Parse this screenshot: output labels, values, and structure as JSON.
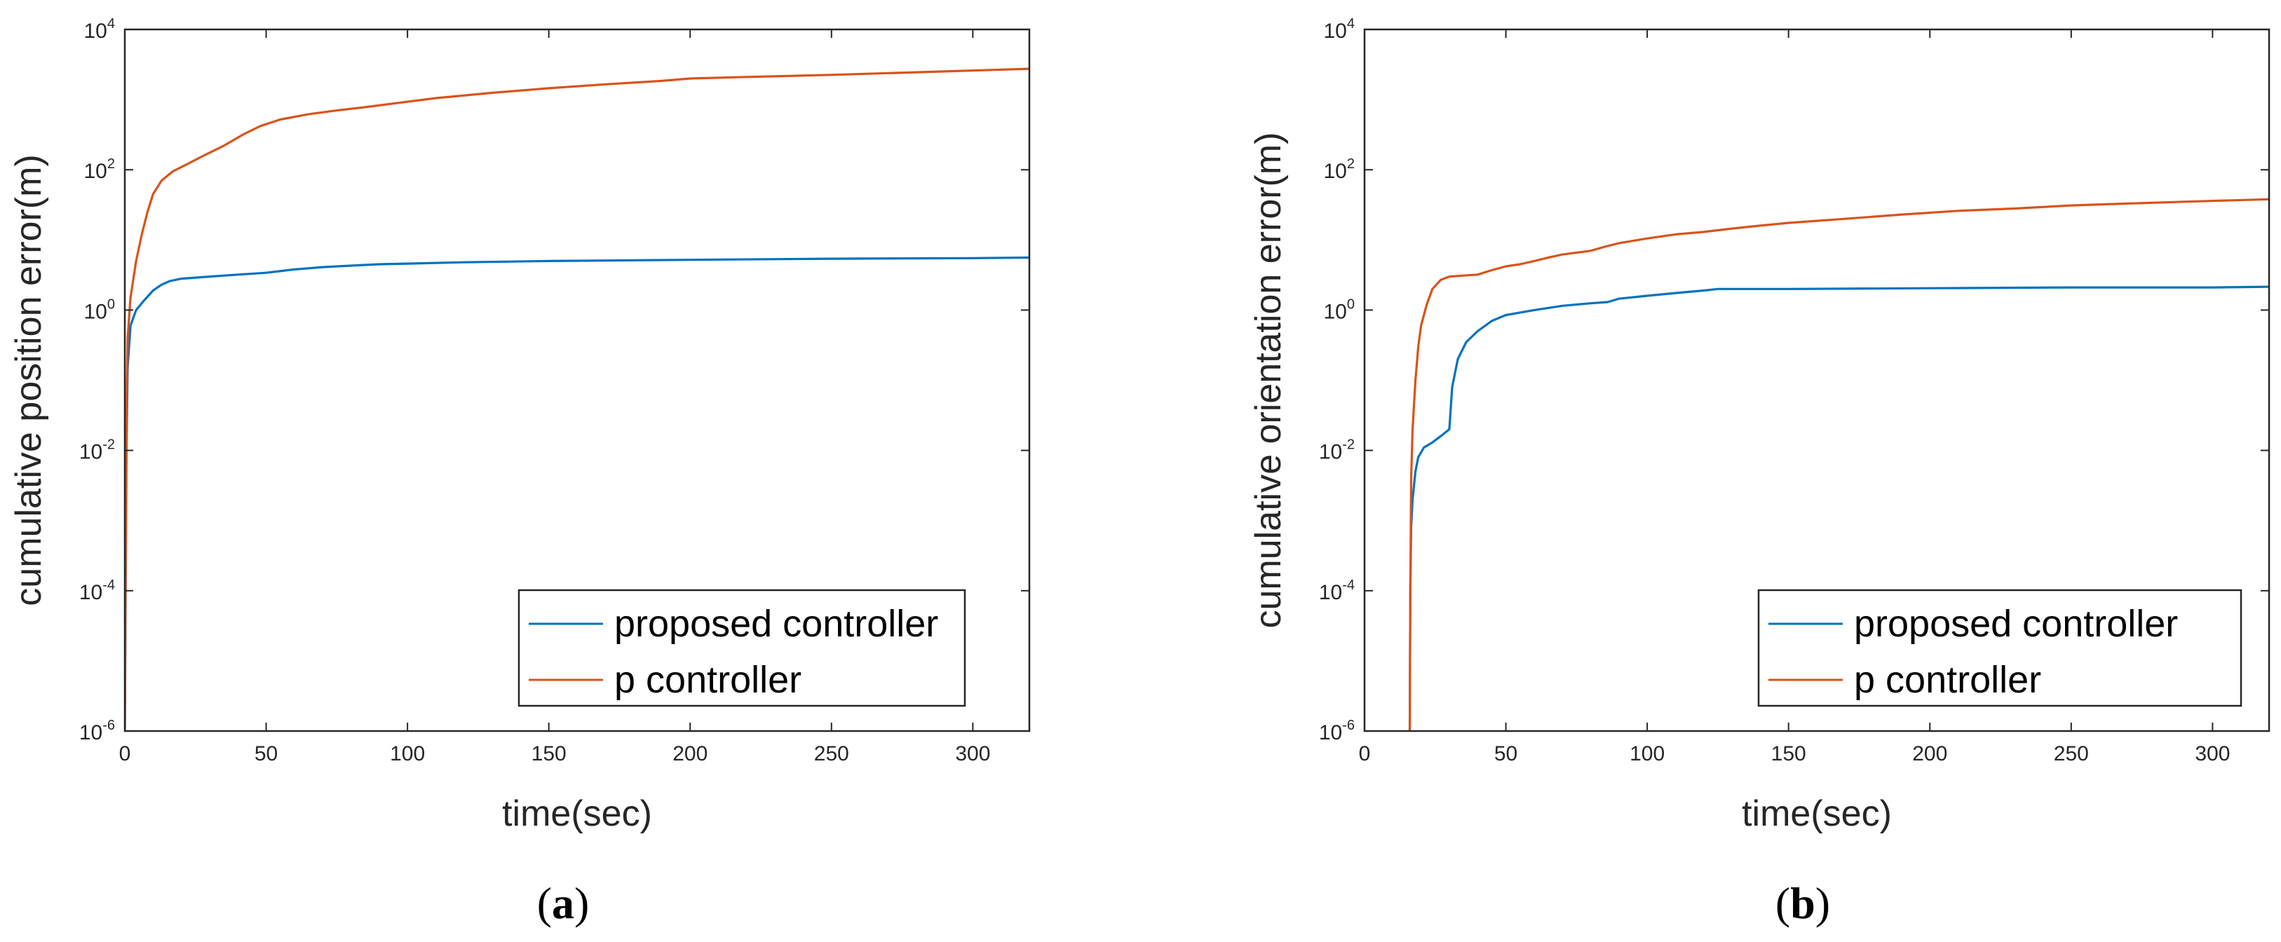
{
  "chart_data": [
    {
      "type": "line",
      "panel_label": "(a)",
      "panel_paren_open": "(",
      "panel_letter": "a",
      "panel_paren_close": ")",
      "xlabel": "time(sec)",
      "ylabel": "cumulative position error(m)",
      "xlim": [
        0,
        320
      ],
      "ylim": [
        1e-06,
        10000.0
      ],
      "yscale": "log",
      "grid": false,
      "legend_position": "bottom-right",
      "xticks": [
        "0",
        "50",
        "100",
        "150",
        "200",
        "250",
        "300"
      ],
      "yticks": [
        {
          "base": "10",
          "exp": "-6"
        },
        {
          "base": "10",
          "exp": "-4"
        },
        {
          "base": "10",
          "exp": "-2"
        },
        {
          "base": "10",
          "exp": "0"
        },
        {
          "base": "10",
          "exp": "2"
        },
        {
          "base": "10",
          "exp": "4"
        }
      ],
      "series": [
        {
          "name": "proposed controller",
          "color": "#0072BD",
          "points": [
            [
              0,
              1e-06
            ],
            [
              0.3,
              0.0001
            ],
            [
              0.6,
              0.01
            ],
            [
              1,
              0.15
            ],
            [
              2,
              0.6
            ],
            [
              4,
              1.0
            ],
            [
              7,
              1.4
            ],
            [
              10,
              1.9
            ],
            [
              13,
              2.3
            ],
            [
              16,
              2.6
            ],
            [
              20,
              2.8
            ],
            [
              25,
              2.9
            ],
            [
              30,
              3.0
            ],
            [
              40,
              3.2
            ],
            [
              50,
              3.4
            ],
            [
              60,
              3.8
            ],
            [
              70,
              4.1
            ],
            [
              80,
              4.3
            ],
            [
              90,
              4.5
            ],
            [
              100,
              4.6
            ],
            [
              120,
              4.8
            ],
            [
              150,
              5.0
            ],
            [
              200,
              5.2
            ],
            [
              250,
              5.4
            ],
            [
              300,
              5.5
            ],
            [
              320,
              5.6
            ]
          ]
        },
        {
          "name": "p controller",
          "color": "#D95319",
          "points": [
            [
              0,
              1e-06
            ],
            [
              0.3,
              0.0003
            ],
            [
              0.6,
              0.03
            ],
            [
              1,
              0.4
            ],
            [
              2,
              1.5
            ],
            [
              4,
              5
            ],
            [
              6,
              12
            ],
            [
              8,
              25
            ],
            [
              10,
              45
            ],
            [
              13,
              70
            ],
            [
              17,
              95
            ],
            [
              22,
              120
            ],
            [
              28,
              160
            ],
            [
              35,
              220
            ],
            [
              42,
              320
            ],
            [
              48,
              420
            ],
            [
              55,
              520
            ],
            [
              65,
              620
            ],
            [
              75,
              700
            ],
            [
              85,
              780
            ],
            [
              95,
              880
            ],
            [
              110,
              1050
            ],
            [
              130,
              1250
            ],
            [
              150,
              1450
            ],
            [
              170,
              1650
            ],
            [
              190,
              1850
            ],
            [
              200,
              2000
            ],
            [
              220,
              2100
            ],
            [
              250,
              2250
            ],
            [
              280,
              2450
            ],
            [
              300,
              2600
            ],
            [
              320,
              2750
            ]
          ]
        }
      ]
    },
    {
      "type": "line",
      "panel_label": "(b)",
      "panel_paren_open": "(",
      "panel_letter": "b",
      "panel_paren_close": ")",
      "xlabel": "time(sec)",
      "ylabel": "cumulative orientation error(m)",
      "xlim": [
        0,
        320
      ],
      "ylim": [
        1e-06,
        10000.0
      ],
      "yscale": "log",
      "grid": false,
      "legend_position": "bottom-right",
      "xticks": [
        "0",
        "50",
        "100",
        "150",
        "200",
        "250",
        "300"
      ],
      "yticks": [
        {
          "base": "10",
          "exp": "-6"
        },
        {
          "base": "10",
          "exp": "-4"
        },
        {
          "base": "10",
          "exp": "-2"
        },
        {
          "base": "10",
          "exp": "0"
        },
        {
          "base": "10",
          "exp": "2"
        },
        {
          "base": "10",
          "exp": "4"
        }
      ],
      "series": [
        {
          "name": "proposed controller",
          "color": "#0072BD",
          "points": [
            [
              16,
              1e-06
            ],
            [
              16.2,
              0.0001
            ],
            [
              16.5,
              0.0008
            ],
            [
              17,
              0.002
            ],
            [
              18,
              0.005
            ],
            [
              19,
              0.008
            ],
            [
              21,
              0.011
            ],
            [
              24,
              0.013
            ],
            [
              27,
              0.016
            ],
            [
              30,
              0.02
            ],
            [
              31,
              0.08
            ],
            [
              33,
              0.2
            ],
            [
              36,
              0.35
            ],
            [
              40,
              0.5
            ],
            [
              45,
              0.7
            ],
            [
              50,
              0.85
            ],
            [
              60,
              1.0
            ],
            [
              70,
              1.15
            ],
            [
              80,
              1.25
            ],
            [
              86,
              1.3
            ],
            [
              90,
              1.45
            ],
            [
              100,
              1.6
            ],
            [
              110,
              1.75
            ],
            [
              120,
              1.9
            ],
            [
              125,
              2.0
            ],
            [
              150,
              2.0
            ],
            [
              200,
              2.05
            ],
            [
              250,
              2.1
            ],
            [
              300,
              2.1
            ],
            [
              320,
              2.15
            ]
          ]
        },
        {
          "name": "p controller",
          "color": "#D95319",
          "points": [
            [
              16,
              1e-06
            ],
            [
              16.2,
              0.0001
            ],
            [
              16.5,
              0.004
            ],
            [
              17,
              0.02
            ],
            [
              18,
              0.1
            ],
            [
              19,
              0.3
            ],
            [
              20,
              0.6
            ],
            [
              22,
              1.2
            ],
            [
              24,
              2.0
            ],
            [
              27,
              2.7
            ],
            [
              30,
              3.0
            ],
            [
              35,
              3.1
            ],
            [
              40,
              3.2
            ],
            [
              45,
              3.7
            ],
            [
              50,
              4.2
            ],
            [
              55,
              4.5
            ],
            [
              60,
              5.0
            ],
            [
              65,
              5.6
            ],
            [
              70,
              6.2
            ],
            [
              80,
              7.0
            ],
            [
              85,
              8.0
            ],
            [
              90,
              9.0
            ],
            [
              100,
              10.5
            ],
            [
              110,
              12
            ],
            [
              120,
              13
            ],
            [
              130,
              14.5
            ],
            [
              140,
              16
            ],
            [
              150,
              17.5
            ],
            [
              170,
              20
            ],
            [
              190,
              23
            ],
            [
              210,
              26
            ],
            [
              230,
              28
            ],
            [
              250,
              31
            ],
            [
              270,
              33
            ],
            [
              290,
              35
            ],
            [
              320,
              38
            ]
          ]
        }
      ]
    }
  ]
}
